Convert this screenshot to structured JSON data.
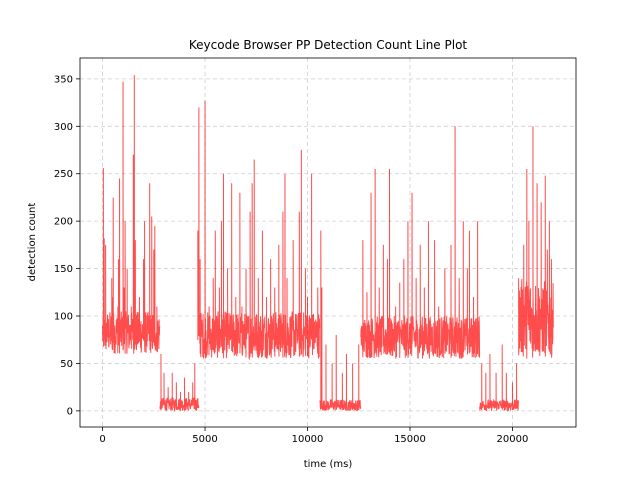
{
  "chart_data": {
    "type": "line",
    "title": "Keycode Browser PP Detection Count Line Plot",
    "xlabel": "time (ms)",
    "ylabel": "detection count",
    "xlim": [
      -1100,
      23100
    ],
    "ylim": [
      -17,
      372
    ],
    "xticks": [
      0,
      5000,
      10000,
      15000,
      20000
    ],
    "yticks": [
      0,
      50,
      100,
      150,
      200,
      250,
      300,
      350
    ],
    "grid": true,
    "line_color": "#ff0000",
    "line_alpha": 0.7,
    "series": [
      {
        "segments": [
          {
            "x_start": 0,
            "x_end": 2800,
            "base_low": 60,
            "base_high": 105,
            "spikes": [
              [
                40,
                256
              ],
              [
                80,
                182
              ],
              [
                150,
                175
              ],
              [
                450,
                140
              ],
              [
                500,
                120
              ],
              [
                520,
                225
              ],
              [
                750,
                110
              ],
              [
                780,
                160
              ],
              [
                830,
                245
              ],
              [
                1000,
                347
              ],
              [
                1050,
                130
              ],
              [
                1100,
                200
              ],
              [
                1200,
                150
              ],
              [
                1400,
                110
              ],
              [
                1500,
                270
              ],
              [
                1550,
                354
              ],
              [
                1600,
                180
              ],
              [
                1800,
                120
              ],
              [
                2000,
                160
              ],
              [
                2050,
                200
              ],
              [
                2300,
                240
              ],
              [
                2400,
                205
              ],
              [
                2500,
                170
              ],
              [
                2550,
                195
              ],
              [
                2650,
                110
              ]
            ]
          },
          {
            "x_start": 2800,
            "x_end": 4700,
            "base_low": 0,
            "base_high": 14,
            "spikes": [
              [
                2850,
                60
              ],
              [
                3000,
                40
              ],
              [
                3200,
                25
              ],
              [
                3400,
                40
              ],
              [
                3600,
                30
              ],
              [
                3800,
                20
              ],
              [
                4000,
                35
              ],
              [
                4200,
                20
              ],
              [
                4400,
                30
              ],
              [
                4500,
                50
              ]
            ]
          },
          {
            "x_start": 4700,
            "x_end": 10600,
            "base_low": 55,
            "base_high": 105,
            "spikes": [
              [
                4650,
                190
              ],
              [
                4700,
                320
              ],
              [
                4760,
                160
              ],
              [
                5000,
                327
              ],
              [
                5200,
                110
              ],
              [
                5400,
                140
              ],
              [
                5500,
                190
              ],
              [
                5700,
                130
              ],
              [
                5800,
                200
              ],
              [
                5900,
                250
              ],
              [
                6100,
                150
              ],
              [
                6300,
                240
              ],
              [
                6500,
                120
              ],
              [
                6700,
                230
              ],
              [
                6800,
                110
              ],
              [
                7000,
                150
              ],
              [
                7200,
                210
              ],
              [
                7300,
                240
              ],
              [
                7400,
                265
              ],
              [
                7600,
                140
              ],
              [
                7800,
                190
              ],
              [
                8000,
                120
              ],
              [
                8200,
                160
              ],
              [
                8400,
                130
              ],
              [
                8600,
                175
              ],
              [
                8800,
                210
              ],
              [
                8900,
                250
              ],
              [
                9000,
                140
              ],
              [
                9300,
                180
              ],
              [
                9600,
                210
              ],
              [
                9700,
                275
              ],
              [
                9900,
                150
              ],
              [
                10000,
                120
              ],
              [
                10200,
                250
              ],
              [
                10500,
                130
              ]
            ]
          },
          {
            "x_start": 10600,
            "x_end": 12600,
            "base_low": 0,
            "base_high": 12,
            "spikes": [
              [
                10650,
                190
              ],
              [
                10700,
                130
              ],
              [
                10900,
                70
              ],
              [
                11200,
                50
              ],
              [
                11400,
                80
              ],
              [
                11700,
                40
              ],
              [
                11900,
                60
              ],
              [
                12200,
                50
              ],
              [
                12500,
                70
              ]
            ]
          },
          {
            "x_start": 12600,
            "x_end": 18400,
            "base_low": 55,
            "base_high": 100,
            "spikes": [
              [
                12700,
                180
              ],
              [
                12900,
                125
              ],
              [
                13100,
                230
              ],
              [
                13300,
                255
              ],
              [
                13500,
                130
              ],
              [
                13700,
                175
              ],
              [
                13900,
                160
              ],
              [
                14000,
                255
              ],
              [
                14300,
                110
              ],
              [
                14500,
                135
              ],
              [
                14700,
                160
              ],
              [
                14900,
                200
              ],
              [
                15100,
                230
              ],
              [
                15300,
                140
              ],
              [
                15500,
                175
              ],
              [
                15700,
                130
              ],
              [
                15900,
                200
              ],
              [
                16200,
                180
              ],
              [
                16400,
                110
              ],
              [
                16700,
                150
              ],
              [
                17000,
                175
              ],
              [
                17200,
                300
              ],
              [
                17400,
                140
              ],
              [
                17600,
                200
              ],
              [
                17800,
                150
              ],
              [
                17900,
                190
              ],
              [
                18100,
                120
              ],
              [
                18300,
                200
              ]
            ]
          },
          {
            "x_start": 18400,
            "x_end": 20300,
            "base_low": 0,
            "base_high": 12,
            "spikes": [
              [
                18500,
                50
              ],
              [
                18700,
                40
              ],
              [
                18900,
                60
              ],
              [
                19200,
                40
              ],
              [
                19500,
                70
              ],
              [
                19700,
                40
              ],
              [
                20000,
                30
              ],
              [
                20200,
                50
              ]
            ]
          },
          {
            "x_start": 20300,
            "x_end": 22000,
            "base_low": 55,
            "base_high": 140,
            "spikes": [
              [
                20300,
                140
              ],
              [
                20550,
                175
              ],
              [
                20700,
                255
              ],
              [
                20800,
                200
              ],
              [
                21000,
                300
              ],
              [
                21200,
                240
              ],
              [
                21400,
                220
              ],
              [
                21600,
                248
              ],
              [
                21700,
                170
              ],
              [
                21800,
                200
              ],
              [
                21900,
                160
              ]
            ]
          }
        ]
      }
    ]
  }
}
